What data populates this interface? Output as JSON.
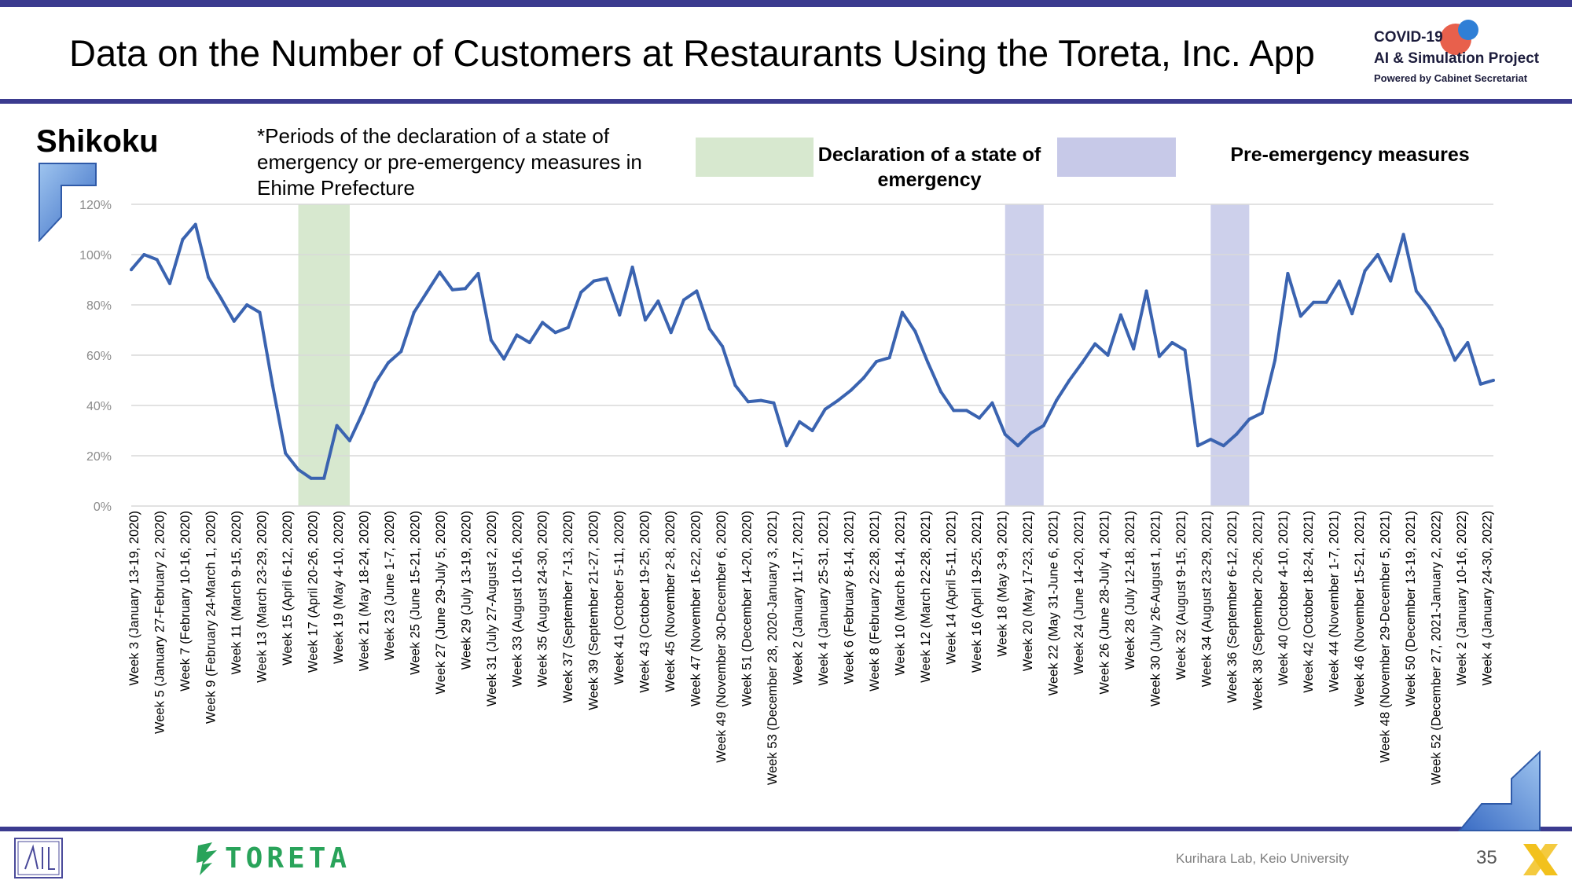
{
  "title": "Data on the Number of Customers at Restaurants Using the Toreta, Inc. App",
  "region": "Shikoku",
  "note": "*Periods of the declaration of a state of emergency or pre-emergency measures in Ehime Prefecture",
  "legend": {
    "emergency": "Declaration of a state of emergency",
    "pre_emergency": "Pre-emergency measures"
  },
  "logo": {
    "line1": "COVID-19",
    "line2": "AI & Simulation Project",
    "line3": "Powered by Cabinet Secretariat"
  },
  "footer": {
    "credit": "Kurihara Lab, Keio University",
    "page": "35",
    "brand": "TORETA"
  },
  "colors": {
    "line": "#3a63b0",
    "emergency_band": "#d7e8cf",
    "pre_emergency_band": "#cdd0eb",
    "header_bar": "#3b3b8f"
  },
  "chart_data": {
    "type": "line",
    "yticks": [
      "0%",
      "20%",
      "40%",
      "60%",
      "80%",
      "100%",
      "120%"
    ],
    "ylim": [
      0,
      120
    ],
    "grid": true,
    "x_labels": [
      "Week 3 (January 13-19, 2020)",
      "Week 5 (January 27-February 2, 2020)",
      "Week 7 (February 10-16, 2020)",
      "Week 9 (February 24-March 1, 2020)",
      "Week 11 (March 9-15, 2020)",
      "Week 13 (March 23-29, 2020)",
      "Week 15 (April 6-12, 2020)",
      "Week 17 (April 20-26, 2020)",
      "Week 19 (May 4-10, 2020)",
      "Week 21 (May 18-24, 2020)",
      "Week 23 (June 1-7, 2020)",
      "Week 25 (June 15-21, 2020)",
      "Week 27 (June 29-July 5, 2020)",
      "Week 29 (July 13-19, 2020)",
      "Week 31 (July 27-August 2, 2020)",
      "Week 33 (August 10-16, 2020)",
      "Week 35 (August 24-30, 2020)",
      "Week 37 (September 7-13, 2020)",
      "Week 39 (September 21-27, 2020)",
      "Week 41 (October 5-11, 2020)",
      "Week 43 (October 19-25, 2020)",
      "Week 45 (November 2-8, 2020)",
      "Week 47 (November 16-22, 2020)",
      "Week 49 (November 30-December 6, 2020)",
      "Week 51 (December 14-20, 2020)",
      "Week 53 (December 28, 2020-January 3, 2021)",
      "Week 2 (January 11-17, 2021)",
      "Week 4 (January 25-31, 2021)",
      "Week 6 (February 8-14, 2021)",
      "Week 8 (February 22-28, 2021)",
      "Week 10 (March 8-14, 2021)",
      "Week 12 (March 22-28, 2021)",
      "Week 14 (April 5-11, 2021)",
      "Week 16 (April 19-25, 2021)",
      "Week 18 (May 3-9, 2021)",
      "Week 20 (May 17-23, 2021)",
      "Week 22 (May 31-June 6, 2021)",
      "Week 24 (June 14-20, 2021)",
      "Week 26 (June 28-July 4, 2021)",
      "Week 28 (July 12-18, 2021)",
      "Week 30 (July 26-August 1, 2021)",
      "Week 32 (August 9-15, 2021)",
      "Week 34 (August 23-29, 2021)",
      "Week 36 (September 6-12, 2021)",
      "Week 38 (September 20-26, 2021)",
      "Week 40 (October 4-10, 2021)",
      "Week 42 (October 18-24, 2021)",
      "Week 44 (November 1-7, 2021)",
      "Week 46 (November 15-21, 2021)",
      "Week 48 (November 29-December 5, 2021)",
      "Week 50 (December 13-19, 2021)",
      "Week 52 (December 27, 2021-January 2, 2022)",
      "Week 2 (January 10-16, 2022)",
      "Week 4 (January 24-30, 2022)"
    ],
    "values": [
      94,
      100,
      98,
      88.5,
      106,
      112,
      91,
      82.5,
      73.5,
      80,
      77,
      48,
      21,
      14.5,
      11,
      11,
      32,
      26,
      37,
      49,
      57,
      61.5,
      77,
      85,
      93,
      86,
      86.5,
      92.5,
      66,
      58.5,
      68,
      65,
      73,
      69,
      71,
      85,
      89.5,
      90.5,
      76,
      95,
      74,
      81.5,
      69,
      82,
      85.5,
      70.5,
      63.5,
      48,
      41.5,
      42,
      41,
      24,
      33.5,
      30,
      38.5,
      42,
      46,
      51,
      57.5,
      59,
      77,
      69.5,
      57,
      45.5,
      38,
      38,
      35,
      41,
      28.5,
      24,
      29,
      32,
      42,
      50,
      57,
      64.5,
      60,
      76,
      62.5,
      85.5,
      59.5,
      65,
      62,
      24,
      26.5,
      24,
      28.5,
      34.5,
      37,
      58,
      92.5,
      75.5,
      81,
      81,
      89.5,
      76.5,
      93.5,
      100,
      89.5,
      108,
      85.5,
      79,
      70.5,
      58,
      65,
      48.5,
      50
    ],
    "emergency_periods": [
      {
        "from_index": 13,
        "to_index": 17
      }
    ],
    "pre_emergency_periods": [
      {
        "from_index": 68,
        "to_index": 71
      },
      {
        "from_index": 84,
        "to_index": 87
      }
    ]
  }
}
